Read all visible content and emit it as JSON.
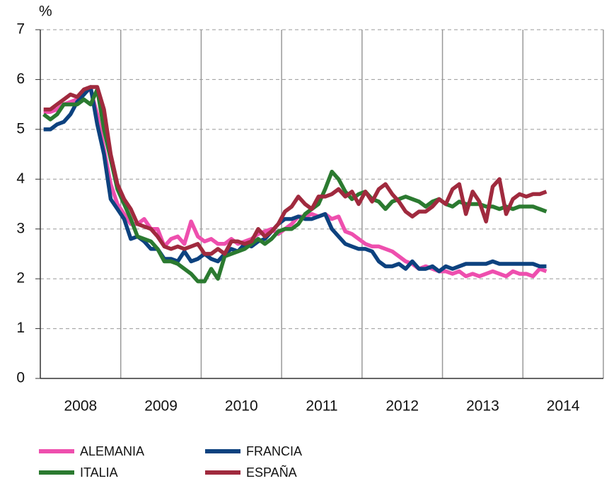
{
  "chart_data": {
    "type": "line",
    "y_label": "%",
    "categories": [
      null,
      null,
      null,
      null,
      null,
      null,
      "2008",
      null,
      null,
      null,
      null,
      null,
      null,
      null,
      null,
      null,
      null,
      null,
      "2009",
      null,
      null,
      null,
      null,
      null,
      null,
      null,
      null,
      null,
      null,
      null,
      "2010",
      null,
      null,
      null,
      null,
      null,
      null,
      null,
      null,
      null,
      null,
      null,
      "2011",
      null,
      null,
      null,
      null,
      null,
      null,
      null,
      null,
      null,
      null,
      null,
      "2012",
      null,
      null,
      null,
      null,
      null,
      null,
      null,
      null,
      null,
      null,
      null,
      "2013",
      null,
      null,
      null,
      null,
      null,
      null,
      null,
      null,
      null,
      null,
      null,
      "2014",
      null,
      null,
      null,
      null,
      null
    ],
    "series": [
      {
        "name": "ALEMANIA",
        "color": "#ee4fae",
        "values": [
          5.35,
          5.35,
          5.4,
          5.5,
          5.55,
          5.6,
          5.75,
          5.8,
          5.3,
          4.6,
          3.9,
          3.5,
          3.3,
          3.1,
          3.1,
          3.2,
          3.0,
          3.0,
          2.65,
          2.8,
          2.85,
          2.7,
          3.15,
          2.85,
          2.75,
          2.8,
          2.7,
          2.7,
          2.8,
          2.7,
          2.75,
          2.8,
          2.9,
          2.95,
          3.0,
          2.9,
          3.0,
          3.1,
          3.25,
          3.25,
          3.3,
          3.25,
          3.3,
          3.2,
          3.25,
          2.95,
          2.9,
          2.8,
          2.7,
          2.65,
          2.65,
          2.6,
          2.55,
          2.45,
          2.35,
          2.3,
          2.2,
          2.25,
          2.2,
          2.15,
          2.15,
          2.1,
          2.15,
          2.05,
          2.1,
          2.05,
          2.1,
          2.15,
          2.1,
          2.05,
          2.15,
          2.1,
          2.1,
          2.05,
          2.2,
          2.15,
          null,
          null,
          null,
          null,
          null,
          null,
          null,
          null
        ]
      },
      {
        "name": "FRANCIA",
        "color": "#0d427f",
        "values": [
          5.0,
          5.0,
          5.1,
          5.15,
          5.3,
          5.55,
          5.7,
          5.85,
          5.1,
          4.5,
          3.6,
          3.4,
          3.2,
          2.8,
          2.85,
          2.75,
          2.6,
          2.6,
          2.4,
          2.4,
          2.35,
          2.55,
          2.35,
          2.4,
          2.5,
          2.4,
          2.35,
          2.5,
          2.6,
          2.55,
          2.7,
          2.65,
          2.75,
          2.8,
          2.95,
          3.1,
          3.2,
          3.2,
          3.25,
          3.2,
          3.2,
          3.25,
          3.3,
          3.0,
          2.85,
          2.7,
          2.65,
          2.6,
          2.6,
          2.55,
          2.35,
          2.25,
          2.25,
          2.3,
          2.2,
          2.35,
          2.2,
          2.2,
          2.25,
          2.15,
          2.25,
          2.2,
          2.25,
          2.3,
          2.3,
          2.3,
          2.3,
          2.35,
          2.3,
          2.3,
          2.3,
          2.3,
          2.3,
          2.3,
          2.25,
          2.25,
          null,
          null,
          null,
          null,
          null,
          null,
          null,
          null
        ]
      },
      {
        "name": "ITALIA",
        "color": "#2b7a30",
        "values": [
          5.3,
          5.2,
          5.3,
          5.5,
          5.5,
          5.5,
          5.6,
          5.5,
          5.8,
          5.0,
          4.4,
          3.8,
          3.5,
          3.2,
          2.85,
          2.8,
          2.75,
          2.6,
          2.35,
          2.35,
          2.3,
          2.2,
          2.1,
          1.95,
          1.95,
          2.2,
          2.0,
          2.45,
          2.5,
          2.55,
          2.6,
          2.7,
          2.8,
          2.7,
          2.8,
          2.95,
          3.0,
          3.0,
          3.1,
          3.3,
          3.4,
          3.5,
          3.8,
          4.15,
          4.0,
          3.75,
          3.6,
          3.7,
          3.75,
          3.6,
          3.55,
          3.4,
          3.55,
          3.6,
          3.65,
          3.6,
          3.55,
          3.45,
          3.55,
          3.6,
          3.5,
          3.45,
          3.55,
          3.5,
          3.5,
          3.5,
          3.45,
          3.45,
          3.4,
          3.45,
          3.4,
          3.45,
          3.45,
          3.45,
          3.4,
          3.35,
          null,
          null,
          null,
          null,
          null,
          null,
          null,
          null
        ]
      },
      {
        "name": "ESPAÑA",
        "color": "#a02a3e",
        "values": [
          5.4,
          5.4,
          5.5,
          5.6,
          5.7,
          5.65,
          5.8,
          5.85,
          5.85,
          5.4,
          4.5,
          3.9,
          3.6,
          3.4,
          3.1,
          3.05,
          3.0,
          2.85,
          2.65,
          2.6,
          2.65,
          2.6,
          2.65,
          2.7,
          2.5,
          2.5,
          2.6,
          2.5,
          2.75,
          2.75,
          2.7,
          2.75,
          3.0,
          2.85,
          2.95,
          3.1,
          3.35,
          3.45,
          3.65,
          3.5,
          3.4,
          3.65,
          3.65,
          3.7,
          3.8,
          3.65,
          3.75,
          3.5,
          3.75,
          3.55,
          3.8,
          3.9,
          3.7,
          3.55,
          3.35,
          3.25,
          3.35,
          3.35,
          3.45,
          3.6,
          3.5,
          3.8,
          3.9,
          3.3,
          3.75,
          3.55,
          3.15,
          3.85,
          4.0,
          3.3,
          3.6,
          3.7,
          3.65,
          3.7,
          3.7,
          3.75,
          null,
          null,
          null,
          null,
          null,
          null,
          null,
          null
        ]
      }
    ],
    "ylim": [
      0,
      7
    ],
    "yticks": [
      0,
      1,
      2,
      3,
      4,
      5,
      6,
      7
    ],
    "grid": true
  }
}
